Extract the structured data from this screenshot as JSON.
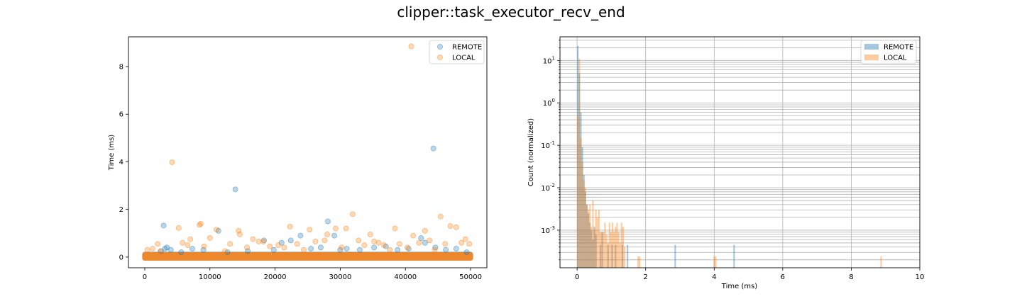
{
  "figure": {
    "title": "clipper::task_executor_recv_end"
  },
  "chart_data": [
    {
      "type": "scatter",
      "title": "",
      "xlabel": "",
      "ylabel": "Time (ms)",
      "xlim": [
        -2500,
        52500
      ],
      "ylim": [
        -0.45,
        9.25
      ],
      "xticks": [
        "0",
        "10000",
        "20000",
        "30000",
        "40000",
        "50000"
      ],
      "xtick_values": [
        0,
        10000,
        20000,
        30000,
        40000,
        50000
      ],
      "yticks": [
        "0",
        "2",
        "4",
        "6",
        "8"
      ],
      "ytick_values": [
        0,
        2,
        4,
        6,
        8
      ],
      "legend_position": "top-right",
      "series": [
        {
          "name": "REMOTE",
          "color": "#1f77b4",
          "alpha": 0.3,
          "x_range": [
            0,
            50000
          ],
          "points": [
            [
              2900,
              1.32
            ],
            [
              3100,
              0.35
            ],
            [
              3400,
              0.4
            ],
            [
              2500,
              0.25
            ],
            [
              4000,
              0.3
            ],
            [
              5600,
              0.2
            ],
            [
              7300,
              0.35
            ],
            [
              9000,
              0.3
            ],
            [
              11300,
              1.1
            ],
            [
              12700,
              0.2
            ],
            [
              13900,
              2.84
            ],
            [
              15800,
              0.25
            ],
            [
              18300,
              0.7
            ],
            [
              19800,
              0.3
            ],
            [
              21000,
              0.6
            ],
            [
              22400,
              0.7
            ],
            [
              23900,
              0.9
            ],
            [
              25500,
              0.35
            ],
            [
              27000,
              0.4
            ],
            [
              28100,
              1.5
            ],
            [
              29100,
              0.9
            ],
            [
              30000,
              0.3
            ],
            [
              31000,
              0.35
            ],
            [
              33000,
              0.3
            ],
            [
              35200,
              0.4
            ],
            [
              37000,
              0.45
            ],
            [
              38800,
              0.3
            ],
            [
              40500,
              0.35
            ],
            [
              42400,
              0.8
            ],
            [
              43000,
              0.6
            ],
            [
              44300,
              4.56
            ],
            [
              44600,
              0.4
            ],
            [
              46200,
              0.3
            ],
            [
              47800,
              0.35
            ],
            [
              49400,
              0.2
            ]
          ]
        },
        {
          "name": "LOCAL",
          "color": "#ff7f0e",
          "alpha": 0.3,
          "x_range": [
            0,
            50000
          ],
          "points": [
            [
              400,
              0.3
            ],
            [
              1200,
              0.35
            ],
            [
              2000,
              0.55
            ],
            [
              2400,
              0.25
            ],
            [
              4200,
              3.98
            ],
            [
              5200,
              1.22
            ],
            [
              5800,
              0.6
            ],
            [
              6600,
              0.5
            ],
            [
              7000,
              0.75
            ],
            [
              8400,
              1.35
            ],
            [
              8600,
              1.4
            ],
            [
              9100,
              0.45
            ],
            [
              10000,
              0.8
            ],
            [
              11000,
              1.15
            ],
            [
              12300,
              0.25
            ],
            [
              13100,
              0.55
            ],
            [
              14400,
              1.1
            ],
            [
              14600,
              0.95
            ],
            [
              15700,
              0.4
            ],
            [
              16600,
              0.75
            ],
            [
              17500,
              0.65
            ],
            [
              18200,
              0.65
            ],
            [
              19200,
              0.45
            ],
            [
              20500,
              0.5
            ],
            [
              21400,
              0.4
            ],
            [
              22300,
              1.28
            ],
            [
              23400,
              0.55
            ],
            [
              24400,
              0.3
            ],
            [
              25300,
              1.15
            ],
            [
              26200,
              0.65
            ],
            [
              27600,
              0.7
            ],
            [
              28000,
              0.95
            ],
            [
              29300,
              1.2
            ],
            [
              30200,
              0.4
            ],
            [
              30900,
              1.2
            ],
            [
              31900,
              1.8
            ],
            [
              32800,
              0.7
            ],
            [
              33700,
              0.5
            ],
            [
              34600,
              0.95
            ],
            [
              35200,
              0.65
            ],
            [
              35900,
              0.6
            ],
            [
              36700,
              0.5
            ],
            [
              37600,
              0.3
            ],
            [
              38400,
              1.2
            ],
            [
              39100,
              0.55
            ],
            [
              40300,
              0.4
            ],
            [
              40900,
              8.85
            ],
            [
              41200,
              0.9
            ],
            [
              42100,
              0.6
            ],
            [
              43000,
              1.1
            ],
            [
              43700,
              0.7
            ],
            [
              44500,
              0.3
            ],
            [
              45400,
              1.7
            ],
            [
              46100,
              0.55
            ],
            [
              46900,
              1.3
            ],
            [
              47800,
              1.25
            ],
            [
              48600,
              0.6
            ],
            [
              49200,
              0.75
            ],
            [
              49800,
              0.55
            ]
          ]
        }
      ]
    },
    {
      "type": "bar",
      "title": "",
      "xlabel": "Time (ms)",
      "ylabel": "Count (normalized)",
      "xlim": [
        -0.5,
        10
      ],
      "ylim": [
        0.00013,
        36
      ],
      "yscale": "log",
      "grid": true,
      "legend_position": "top-right",
      "xticks": [
        "0",
        "2",
        "4",
        "6",
        "8",
        "10"
      ],
      "xtick_values": [
        0,
        2,
        4,
        6,
        8,
        10
      ],
      "yticks": [
        "10^1",
        "10^0",
        "10^-1",
        "10^-2",
        "10^-3"
      ],
      "ytick_values": [
        10,
        1,
        0.1,
        0.01,
        0.001
      ],
      "bin_width": 0.044,
      "series": [
        {
          "name": "REMOTE",
          "color": "#1f77b4",
          "alpha": 0.4,
          "bins": [
            [
              0.0,
              22
            ],
            [
              0.044,
              5
            ],
            [
              0.088,
              0.6
            ],
            [
              0.132,
              0.09
            ],
            [
              0.176,
              0.02
            ],
            [
              0.22,
              0.008
            ],
            [
              0.264,
              0.004
            ],
            [
              0.308,
              0.0025
            ],
            [
              0.352,
              0.0015
            ],
            [
              0.396,
              0.001
            ],
            [
              0.44,
              0.0006
            ],
            [
              0.484,
              0.0012
            ],
            [
              0.528,
              0.0008
            ],
            [
              0.66,
              0.00045
            ],
            [
              0.71,
              0.0009
            ],
            [
              0.88,
              0.00045
            ],
            [
              1.0,
              0.00045
            ],
            [
              1.1,
              0.00045
            ],
            [
              1.3,
              0.00045
            ],
            [
              1.45,
              0.00045
            ],
            [
              2.84,
              0.00045
            ],
            [
              4.56,
              0.00045
            ]
          ]
        },
        {
          "name": "LOCAL",
          "color": "#ff7f0e",
          "alpha": 0.4,
          "bins": [
            [
              0.0,
              0.5
            ],
            [
              0.044,
              11
            ],
            [
              0.088,
              0.15
            ],
            [
              0.132,
              0.04
            ],
            [
              0.176,
              0.015
            ],
            [
              0.22,
              0.01
            ],
            [
              0.264,
              0.004
            ],
            [
              0.308,
              0.003
            ],
            [
              0.352,
              0.004
            ],
            [
              0.396,
              0.0012
            ],
            [
              0.44,
              0.005
            ],
            [
              0.484,
              0.001
            ],
            [
              0.528,
              0.003
            ],
            [
              0.572,
              0.002
            ],
            [
              0.616,
              0.003
            ],
            [
              0.66,
              0.0009
            ],
            [
              0.704,
              0.0009
            ],
            [
              0.748,
              0.0009
            ],
            [
              0.792,
              0.0015
            ],
            [
              0.836,
              0.0008
            ],
            [
              0.88,
              0.0005
            ],
            [
              0.924,
              0.0015
            ],
            [
              0.968,
              0.0009
            ],
            [
              1.012,
              0.0015
            ],
            [
              1.056,
              0.0009
            ],
            [
              1.1,
              0.0012
            ],
            [
              1.144,
              0.0015
            ],
            [
              1.188,
              0.0009
            ],
            [
              1.232,
              0.0005
            ],
            [
              1.276,
              0.0015
            ],
            [
              1.32,
              0.0012
            ],
            [
              1.364,
              0.0004
            ],
            [
              1.76,
              0.00024
            ],
            [
              1.804,
              0.00024
            ],
            [
              3.98,
              0.00024
            ],
            [
              4.024,
              0.00024
            ],
            [
              8.85,
              0.00024
            ]
          ]
        }
      ]
    }
  ]
}
